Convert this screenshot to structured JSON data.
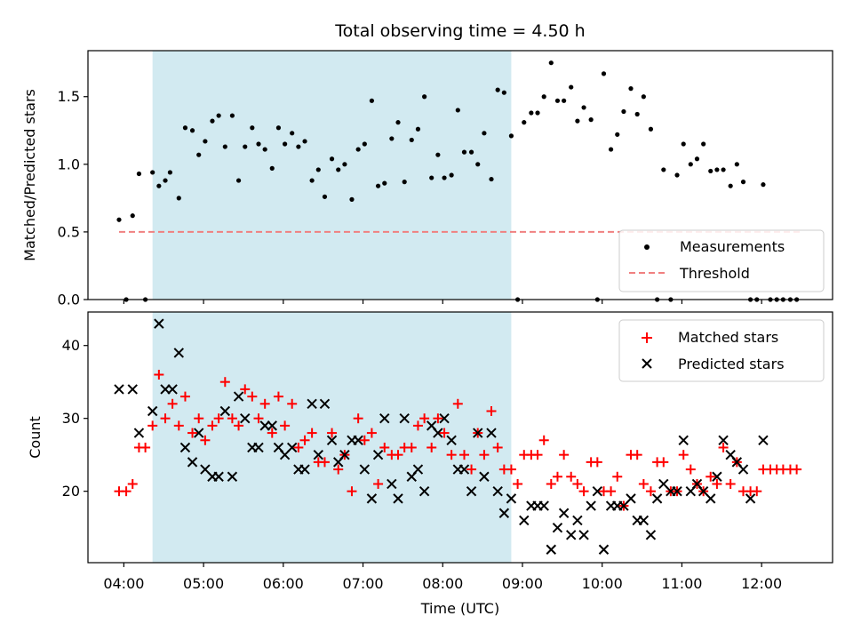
{
  "chart_data": {
    "title": "Total observing time = 4.50 h",
    "xlabel": "Time (UTC)",
    "x_ticks": [
      "04:00",
      "05:00",
      "06:00",
      "07:00",
      "08:00",
      "09:00",
      "10:00",
      "11:00",
      "12:00"
    ],
    "x_tick_hours": [
      4,
      5,
      6,
      7,
      8,
      9,
      10,
      11,
      12
    ],
    "xlim_hours": [
      3.55,
      12.89
    ],
    "shaded_region_hours": [
      4.36,
      8.86
    ],
    "colors": {
      "measurements": "#000000",
      "threshold": "#f08080",
      "matched": "#ff0000",
      "predicted": "#000000",
      "shade": "#add8e6"
    },
    "panels": [
      {
        "type": "scatter",
        "ylabel": "Matched/Predicted stars",
        "ylim": [
          0,
          1.84
        ],
        "yticks": [
          0.0,
          0.5,
          1.0,
          1.5
        ],
        "ytick_labels": [
          "0.0",
          "0.5",
          "1.0",
          "1.5"
        ],
        "legend_position": "lower-right",
        "legend": [
          "Measurements",
          "Threshold"
        ],
        "threshold": {
          "value": 0.5,
          "x_range_hours": [
            3.94,
            12.5
          ]
        },
        "measurements": {
          "x": [
            3.94,
            4.03,
            4.11,
            4.19,
            4.27,
            4.36,
            4.44,
            4.52,
            4.58,
            4.69,
            4.77,
            4.86,
            4.94,
            5.02,
            5.11,
            5.19,
            5.27,
            5.36,
            5.44,
            5.52,
            5.61,
            5.69,
            5.77,
            5.86,
            5.94,
            6.02,
            6.11,
            6.19,
            6.27,
            6.36,
            6.44,
            6.52,
            6.61,
            6.69,
            6.77,
            6.86,
            6.94,
            7.02,
            7.11,
            7.19,
            7.27,
            7.36,
            7.44,
            7.52,
            7.61,
            7.69,
            7.77,
            7.86,
            7.94,
            8.02,
            8.11,
            8.19,
            8.27,
            8.36,
            8.44,
            8.52,
            8.61,
            8.69,
            8.77,
            8.86,
            8.94,
            9.02,
            9.11,
            9.19,
            9.27,
            9.36,
            9.44,
            9.52,
            9.61,
            9.69,
            9.77,
            9.86,
            9.94,
            10.02,
            10.11,
            10.19,
            10.27,
            10.36,
            10.44,
            10.52,
            10.61,
            10.69,
            10.77,
            10.86,
            10.94,
            11.02,
            11.11,
            11.19,
            11.27,
            11.36,
            11.44,
            11.52,
            11.61,
            11.69,
            11.77,
            11.86,
            11.94,
            12.02,
            12.11,
            12.19,
            12.27,
            12.36,
            12.44
          ],
          "y": [
            0.59,
            0.0,
            0.62,
            0.93,
            0.0,
            0.94,
            0.84,
            0.88,
            0.94,
            0.75,
            1.27,
            1.25,
            1.07,
            1.17,
            1.32,
            1.36,
            1.13,
            1.36,
            0.88,
            1.13,
            1.27,
            1.15,
            1.11,
            0.97,
            1.27,
            1.15,
            1.23,
            1.13,
            1.17,
            0.88,
            0.96,
            0.76,
            1.04,
            0.96,
            1.0,
            0.74,
            1.11,
            1.15,
            1.47,
            0.84,
            0.86,
            1.19,
            1.31,
            0.87,
            1.18,
            1.26,
            1.5,
            0.9,
            1.07,
            0.9,
            0.92,
            1.4,
            1.09,
            1.09,
            1.0,
            1.23,
            0.89,
            1.55,
            1.53,
            1.21,
            0.0,
            1.31,
            1.38,
            1.38,
            1.5,
            1.75,
            1.47,
            1.47,
            1.57,
            1.32,
            1.42,
            1.33,
            0.0,
            1.67,
            1.11,
            1.22,
            1.39,
            1.56,
            1.37,
            1.5,
            1.26,
            0.0,
            0.96,
            0.0,
            0.92,
            1.15,
            1.0,
            1.04,
            1.15,
            0.95,
            0.96,
            0.96,
            0.84,
            1.0,
            0.87,
            0.0,
            0.0,
            0.85,
            0.0,
            0.0,
            0.0,
            0.0,
            0.0
          ]
        }
      },
      {
        "type": "scatter",
        "ylabel": "Count",
        "ylim": [
          10.2,
          44.6
        ],
        "yticks": [
          20,
          30,
          40
        ],
        "ytick_labels": [
          "20",
          "30",
          "40"
        ],
        "legend_position": "upper-right",
        "series": [
          {
            "name": "Matched stars",
            "marker": "plus",
            "x": [
              3.94,
              4.03,
              4.11,
              4.19,
              4.27,
              4.36,
              4.44,
              4.52,
              4.61,
              4.69,
              4.77,
              4.86,
              4.94,
              5.02,
              5.11,
              5.19,
              5.27,
              5.36,
              5.44,
              5.52,
              5.61,
              5.69,
              5.77,
              5.86,
              5.94,
              6.02,
              6.11,
              6.19,
              6.27,
              6.36,
              6.44,
              6.52,
              6.61,
              6.69,
              6.77,
              6.86,
              6.94,
              7.02,
              7.11,
              7.19,
              7.27,
              7.36,
              7.44,
              7.52,
              7.61,
              7.69,
              7.77,
              7.86,
              7.94,
              8.02,
              8.11,
              8.19,
              8.27,
              8.36,
              8.44,
              8.52,
              8.61,
              8.69,
              8.77,
              8.86,
              8.94,
              9.02,
              9.11,
              9.19,
              9.27,
              9.36,
              9.44,
              9.52,
              9.61,
              9.69,
              9.77,
              9.86,
              9.94,
              10.02,
              10.11,
              10.19,
              10.27,
              10.36,
              10.44,
              10.52,
              10.61,
              10.69,
              10.77,
              10.86,
              10.94,
              11.02,
              11.11,
              11.19,
              11.27,
              11.36,
              11.44,
              11.52,
              11.61,
              11.69,
              11.77,
              11.86,
              11.94,
              12.02,
              12.11,
              12.19,
              12.27,
              12.36,
              12.44
            ],
            "y": [
              20,
              20,
              21,
              26,
              26,
              29,
              36,
              30,
              32,
              29,
              33,
              28,
              30,
              27,
              29,
              30,
              35,
              30,
              29,
              34,
              33,
              30,
              32,
              28,
              33,
              29,
              32,
              26,
              27,
              28,
              24,
              24,
              28,
              23,
              25,
              20,
              30,
              27,
              28,
              21,
              26,
              25,
              25,
              26,
              26,
              29,
              30,
              26,
              30,
              28,
              25,
              32,
              25,
              23,
              28,
              25,
              31,
              26,
              23,
              23,
              21,
              25,
              25,
              25,
              27,
              21,
              22,
              25,
              22,
              21,
              20,
              24,
              24,
              20,
              20,
              22,
              18,
              25,
              25,
              21,
              20,
              24,
              24,
              20,
              20,
              25,
              23,
              21,
              20,
              22,
              21,
              26,
              21,
              24,
              20,
              20,
              20,
              23,
              23,
              23,
              23,
              23,
              23
            ]
          },
          {
            "name": "Predicted stars",
            "marker": "x",
            "x": [
              3.94,
              4.11,
              4.19,
              4.36,
              4.44,
              4.52,
              4.61,
              4.69,
              4.77,
              4.86,
              4.94,
              5.02,
              5.11,
              5.19,
              5.27,
              5.36,
              5.44,
              5.52,
              5.61,
              5.69,
              5.77,
              5.86,
              5.94,
              6.02,
              6.11,
              6.19,
              6.27,
              6.36,
              6.44,
              6.52,
              6.61,
              6.69,
              6.77,
              6.86,
              6.94,
              7.02,
              7.11,
              7.19,
              7.27,
              7.36,
              7.44,
              7.52,
              7.61,
              7.69,
              7.77,
              7.86,
              7.94,
              8.02,
              8.11,
              8.19,
              8.27,
              8.36,
              8.44,
              8.52,
              8.61,
              8.69,
              8.77,
              8.86,
              9.02,
              9.11,
              9.19,
              9.27,
              9.36,
              9.44,
              9.52,
              9.61,
              9.69,
              9.77,
              9.86,
              9.94,
              10.02,
              10.11,
              10.19,
              10.27,
              10.36,
              10.44,
              10.52,
              10.61,
              10.69,
              10.77,
              10.86,
              10.94,
              11.02,
              11.11,
              11.19,
              11.27,
              11.36,
              11.44,
              11.52,
              11.61,
              11.69,
              11.77,
              11.86,
              12.02
            ],
            "y": [
              34,
              34,
              28,
              31,
              43,
              34,
              34,
              39,
              26,
              24,
              28,
              23,
              22,
              22,
              31,
              22,
              33,
              30,
              26,
              26,
              29,
              29,
              26,
              25,
              26,
              23,
              23,
              32,
              25,
              32,
              27,
              24,
              25,
              27,
              27,
              23,
              19,
              25,
              30,
              21,
              19,
              30,
              22,
              23,
              20,
              29,
              28,
              30,
              27,
              23,
              23,
              20,
              28,
              22,
              28,
              20,
              17,
              19,
              16,
              18,
              18,
              18,
              12,
              15,
              17,
              14,
              16,
              14,
              18,
              20,
              12,
              18,
              18,
              18,
              19,
              16,
              16,
              14,
              19,
              21,
              20,
              20,
              27,
              20,
              21,
              20,
              19,
              22,
              27,
              25,
              24,
              23,
              19,
              27
            ]
          }
        ]
      }
    ]
  }
}
